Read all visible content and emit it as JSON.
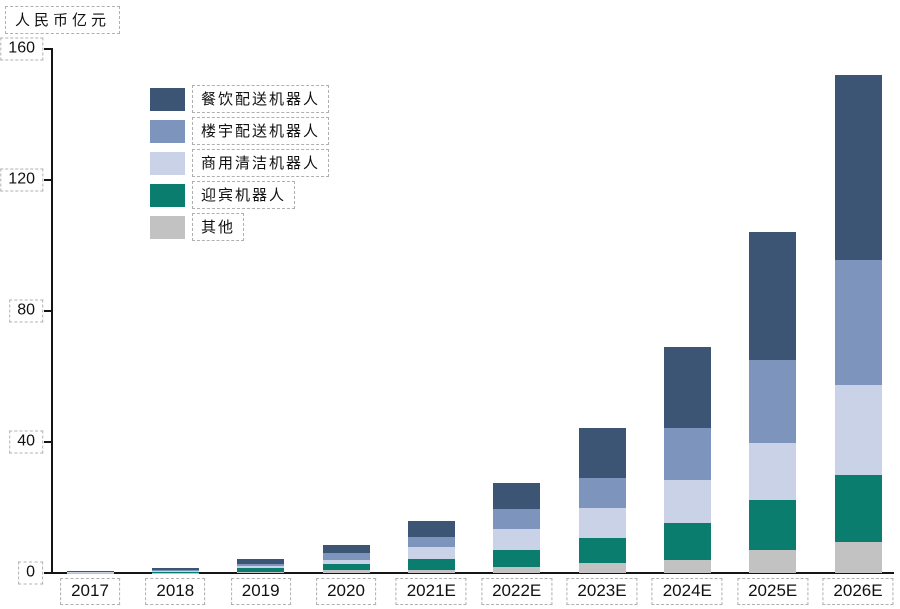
{
  "axis_title": "人民币亿元",
  "chart_data": {
    "type": "bar",
    "stacked": true,
    "title": "",
    "ylabel": "人民币亿元",
    "xlabel": "",
    "ylim": [
      0,
      160
    ],
    "yticks": [
      0,
      40,
      80,
      120,
      160
    ],
    "grid": false,
    "legend_position": "upper-left-inside",
    "categories": [
      "2017",
      "2018",
      "2019",
      "2020",
      "2021E",
      "2022E",
      "2023E",
      "2024E",
      "2025E",
      "2026E"
    ],
    "series": [
      {
        "name": "餐饮配送机器人",
        "color": "#3c5574",
        "values": [
          0.3,
          0.6,
          1.3,
          2.5,
          4.9,
          8.0,
          15.2,
          24.5,
          39.1,
          56.6
        ]
      },
      {
        "name": "楼宇配送机器人",
        "color": "#7d95bd",
        "values": [
          0.1,
          0.35,
          0.8,
          2.0,
          3.1,
          6.1,
          9.2,
          16.0,
          25.3,
          38.2
        ]
      },
      {
        "name": "商用清洁机器人",
        "color": "#c9d2e6",
        "values": [
          0.1,
          0.3,
          0.7,
          1.3,
          3.6,
          6.4,
          9.1,
          13.1,
          17.3,
          27.5
        ]
      },
      {
        "name": "迎宾机器人",
        "color": "#0b7d6e",
        "values": [
          0.05,
          0.25,
          1.0,
          1.9,
          3.5,
          5.2,
          7.7,
          11.3,
          15.3,
          20.3
        ]
      },
      {
        "name": "其他",
        "color": "#c2c2c2",
        "values": [
          0.05,
          0.1,
          0.4,
          0.8,
          0.8,
          1.8,
          3.0,
          4.0,
          7.0,
          9.6
        ]
      }
    ],
    "totals": [
      0.6,
      1.6,
      4.2,
      8.5,
      15.9,
      27.5,
      44.2,
      68.9,
      104.0,
      152.2
    ]
  },
  "colors": {
    "axis": "#151515",
    "annotation_box": "#b0b0b0",
    "background": "#ffffff"
  }
}
